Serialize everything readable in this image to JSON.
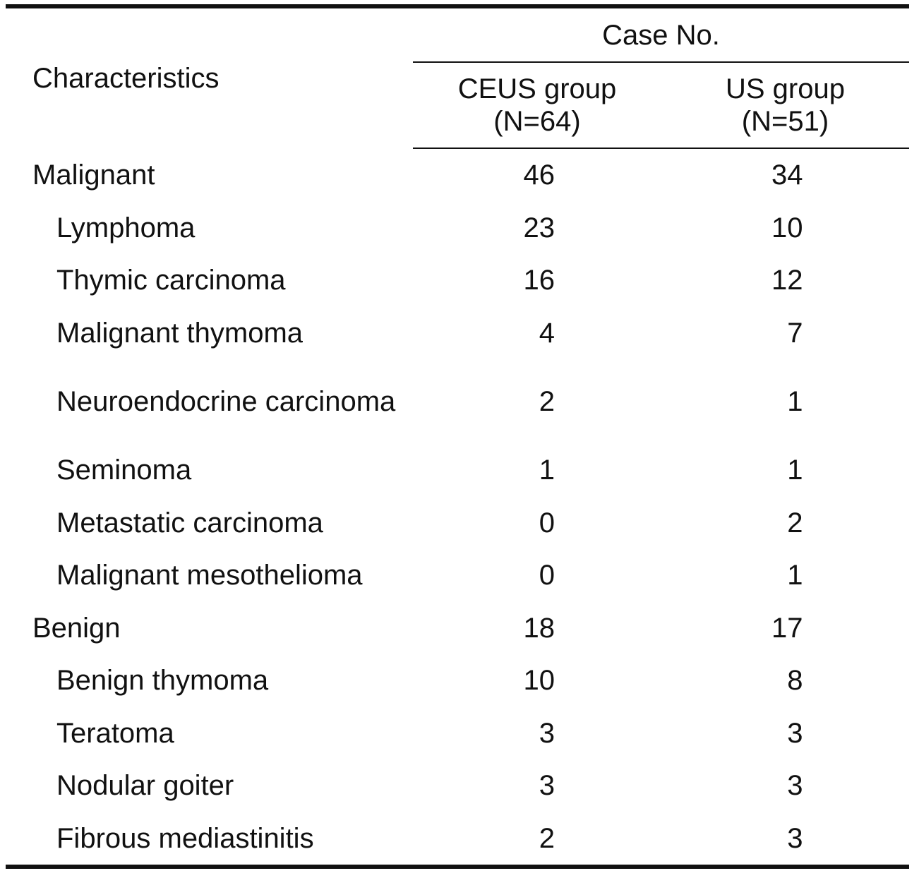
{
  "table": {
    "header": {
      "characteristics": "Characteristics",
      "case_no": "Case No.",
      "ceus_group_line1": "CEUS group",
      "ceus_group_line2": "(N=64)",
      "us_group_line1": "US group",
      "us_group_line2": "(N=51)"
    },
    "rows": [
      {
        "label": "Malignant",
        "ceus": "46",
        "us": "34"
      },
      {
        "label": "Lymphoma",
        "ceus": "23",
        "us": "10"
      },
      {
        "label": "Thymic carcinoma",
        "ceus": "16",
        "us": "12"
      },
      {
        "label": "Malignant thymoma",
        "ceus": "4",
        "us": "7"
      },
      {
        "label": "Neuroendocrine carcinoma",
        "ceus": "2",
        "us": "1"
      },
      {
        "label": "Seminoma",
        "ceus": "1",
        "us": "1"
      },
      {
        "label": "Metastatic carcinoma",
        "ceus": "0",
        "us": "2"
      },
      {
        "label": "Malignant mesothelioma",
        "ceus": "0",
        "us": "1"
      },
      {
        "label": "Benign",
        "ceus": "18",
        "us": "17"
      },
      {
        "label": "Benign thymoma",
        "ceus": "10",
        "us": "8"
      },
      {
        "label": "Teratoma",
        "ceus": "3",
        "us": "3"
      },
      {
        "label": "Nodular goiter",
        "ceus": "3",
        "us": "3"
      },
      {
        "label": "Fibrous mediastinitis",
        "ceus": "2",
        "us": "3"
      }
    ]
  }
}
